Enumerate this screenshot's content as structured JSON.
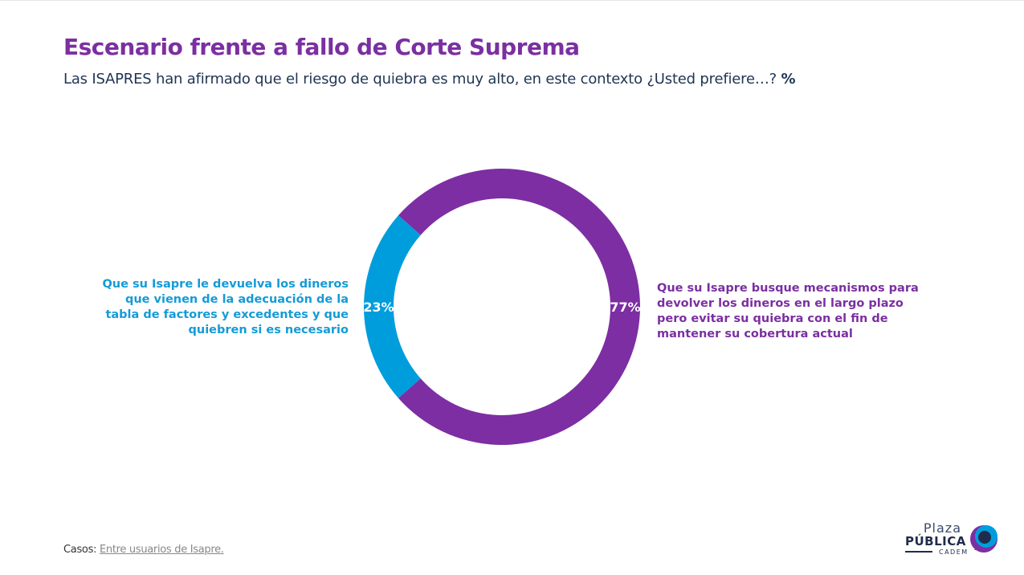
{
  "header": {
    "title": "Escenario frente a fallo de Corte Suprema",
    "subtitle": "Las ISAPRES han afirmado que el riesgo de quiebra es muy alto, en este contexto ¿Usted prefiere…?",
    "unit": "%"
  },
  "chart_data": {
    "type": "pie",
    "title": "",
    "slices": [
      {
        "label": "Que su Isapre busque mecanismos para devolver los dineros en el largo plazo pero evitar su quiebra con el fin de mantener su cobertura actual",
        "value": 77,
        "value_label": "77%",
        "color": "#7d2ea3"
      },
      {
        "label": "Que su Isapre le devuelva los dineros que vienen de la adecuación de la tabla de factores y excedentes y que quiebren si es necesario",
        "value": 23,
        "value_label": "23%",
        "color": "#009ddc"
      }
    ]
  },
  "labels": {
    "left_lines": [
      "Que su Isapre le devuelva los dineros",
      "que vienen de la adecuación de la",
      "tabla de factores y excedentes y que",
      "quiebren si es necesario"
    ],
    "right_lines": [
      "Que su Isapre busque mecanismos para",
      "devolver los dineros en el largo plazo",
      "pero evitar su quiebra con el fin de",
      "mantener su cobertura actual"
    ]
  },
  "footnote": {
    "key": "Casos",
    "value": "Entre usuarios de Isapre."
  },
  "logo": {
    "line1": "Plaza",
    "line2": "PÚBLICA",
    "line3": "CADEM",
    "colors": [
      "#7d2ea3",
      "#009ddc",
      "#1f2c4c"
    ]
  }
}
